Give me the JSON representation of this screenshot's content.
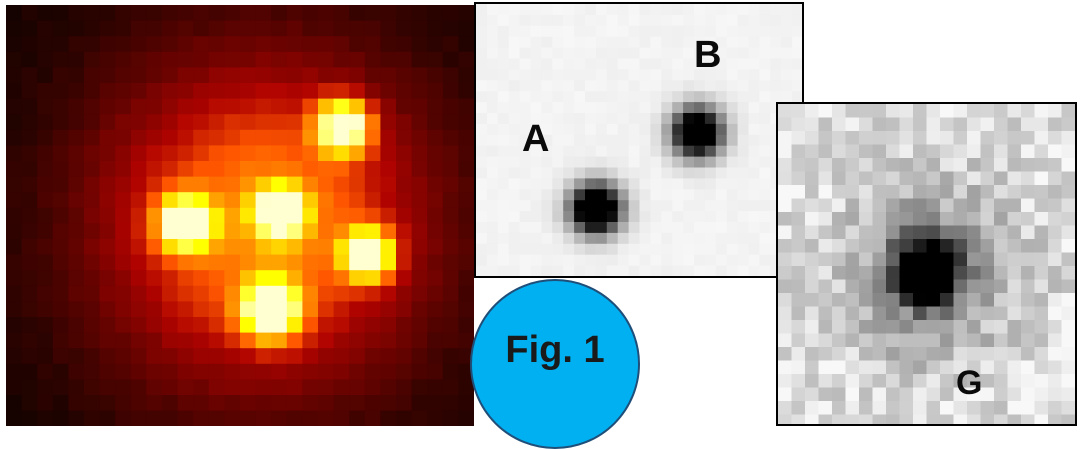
{
  "figure": {
    "badge_label": "Fig. 1",
    "badge_color": "#00b0f0",
    "badge_border_color": "#1f4e79"
  },
  "panels": {
    "quasar": {
      "colormap": "hot",
      "source_count": 5
    },
    "pair": {
      "colormap": "inverted-grey",
      "labels": {
        "a": "A",
        "b": "B"
      }
    },
    "galaxy": {
      "colormap": "inverted-grey",
      "label": "G"
    }
  }
}
